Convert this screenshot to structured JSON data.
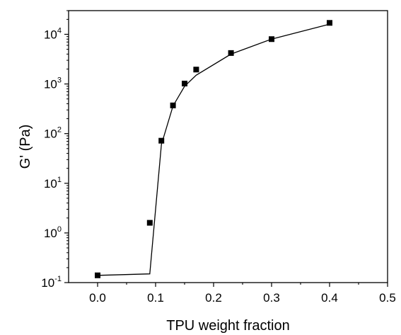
{
  "chart_data": {
    "type": "scatter",
    "title": "",
    "xlabel": "TPU weight fraction",
    "ylabel": "G' (Pa)",
    "xlim": [
      -0.05,
      0.5
    ],
    "ylim": [
      0.1,
      30000
    ],
    "yscale": "log",
    "grid": false,
    "x_ticks": [
      0.0,
      0.1,
      0.2,
      0.3,
      0.4,
      0.5
    ],
    "x_tick_labels": [
      "0.0",
      "0.1",
      "0.2",
      "0.3",
      "0.4",
      "0.5"
    ],
    "y_ticks": [
      0.1,
      1,
      10,
      100,
      1000,
      10000
    ],
    "y_tick_labels": [
      {
        "base": "10",
        "exp": "-1"
      },
      {
        "base": "10",
        "exp": "0"
      },
      {
        "base": "10",
        "exp": "1"
      },
      {
        "base": "10",
        "exp": "2"
      },
      {
        "base": "10",
        "exp": "3"
      },
      {
        "base": "10",
        "exp": "4"
      }
    ],
    "series": [
      {
        "mark": "square",
        "color": "#000000",
        "x": [
          0.0,
          0.09,
          0.11,
          0.13,
          0.15,
          0.17,
          0.23,
          0.3,
          0.4
        ],
        "y": [
          0.14,
          1.6,
          72,
          370,
          1020,
          1950,
          4200,
          8000,
          17000
        ]
      },
      {
        "mark": "line",
        "color": "#000000",
        "x": [
          0.0,
          0.09,
          0.11,
          0.13,
          0.15,
          0.17,
          0.23,
          0.3,
          0.4
        ],
        "y": [
          0.14,
          0.15,
          60,
          360,
          900,
          1500,
          4000,
          8000,
          16000
        ]
      }
    ]
  }
}
